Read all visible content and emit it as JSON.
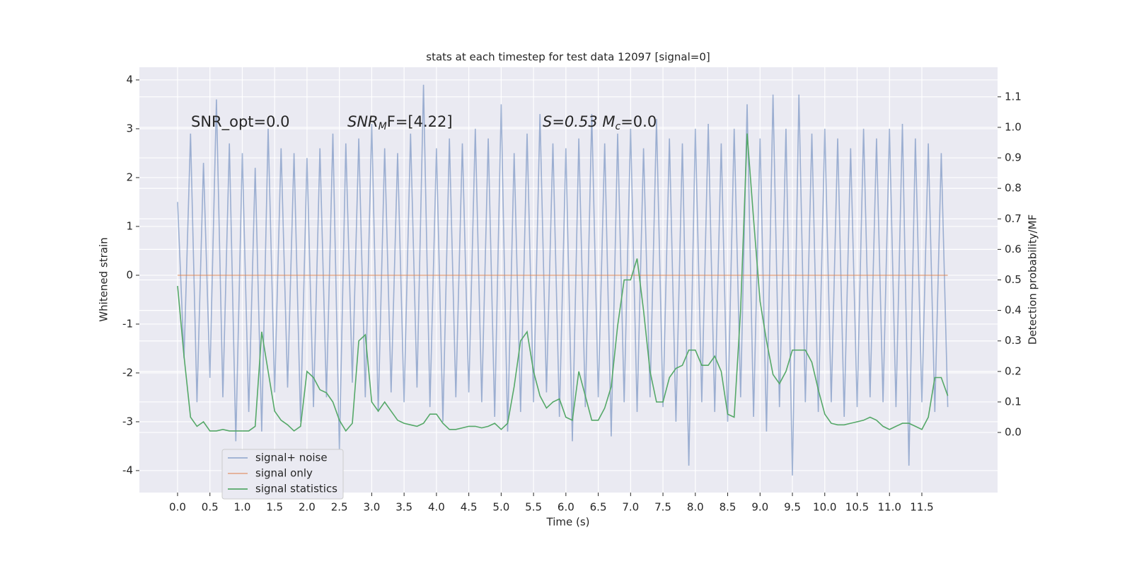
{
  "chart_data": {
    "type": "line",
    "title": "stats at each timestep for test data 12097 [signal=0]",
    "xlabel": "Time (s)",
    "ylabel": "Whitened strain",
    "y2label": "Detection probability/MF",
    "annotations": [
      {
        "text": "SNR_opt=0.0"
      },
      {
        "text": "SNR",
        "sub": "M",
        "after": "F=[4.22]"
      },
      {
        "text": "S=0.53   M",
        "sub": "c",
        "after": "=0.0"
      }
    ],
    "legend": "lower left",
    "grid": true,
    "xlim": [
      -0.59,
      12.67
    ],
    "ylim": [
      -4.45,
      4.26
    ],
    "y2lim": [
      -0.197,
      1.197
    ],
    "xticks": [
      {
        "value": 0,
        "label": "0.0"
      },
      0.5,
      {
        "value": 1,
        "label": "1.0"
      },
      1.5,
      {
        "value": 2,
        "label": "2.0"
      },
      2.5,
      {
        "value": 3,
        "label": "3.0"
      },
      3.5,
      {
        "value": 4,
        "label": "4.0"
      },
      4.5,
      {
        "value": 5,
        "label": "5.0"
      },
      5.5,
      {
        "value": 6,
        "label": "6.0"
      },
      6.5,
      {
        "value": 7,
        "label": "7.0"
      },
      7.5,
      {
        "value": 8,
        "label": "8.0"
      },
      8.5,
      {
        "value": 9,
        "label": "9.0"
      },
      9.5,
      {
        "value": 10,
        "label": "10.0"
      },
      10.5,
      {
        "value": 11,
        "label": "11.0"
      },
      11.5
    ],
    "yticks": [
      -4,
      -3,
      -2,
      -1,
      0,
      1,
      2,
      3,
      4
    ],
    "y2ticks": [
      {
        "value": 0,
        "label": "0.0"
      },
      0.1,
      0.2,
      0.3,
      0.4,
      0.5,
      0.6,
      0.7,
      0.8,
      0.9,
      {
        "value": 1,
        "label": "1.0"
      },
      1.1
    ],
    "x": [
      0,
      0.1,
      0.2,
      0.3,
      0.4,
      0.5,
      0.6,
      0.7,
      0.8,
      0.9,
      1,
      1.1,
      1.2,
      1.3,
      1.4,
      1.5,
      1.6,
      1.7,
      1.8,
      1.9,
      2,
      2.1,
      2.2,
      2.3,
      2.4,
      2.5,
      2.6,
      2.7,
      2.8,
      2.9,
      3,
      3.1,
      3.2,
      3.3,
      3.4,
      3.5,
      3.6,
      3.7,
      3.8,
      3.9,
      4,
      4.1,
      4.2,
      4.3,
      4.4,
      4.5,
      4.6,
      4.7,
      4.8,
      4.9,
      5,
      5.1,
      5.2,
      5.3,
      5.4,
      5.5,
      5.6,
      5.7,
      5.8,
      5.9,
      6,
      6.1,
      6.2,
      6.3,
      6.4,
      6.5,
      6.6,
      6.7,
      6.8,
      6.9,
      7,
      7.1,
      7.2,
      7.3,
      7.4,
      7.5,
      7.6,
      7.7,
      7.8,
      7.9,
      8,
      8.1,
      8.2,
      8.3,
      8.4,
      8.5,
      8.6,
      8.7,
      8.8,
      8.9,
      9,
      9.1,
      9.2,
      9.3,
      9.4,
      9.5,
      9.6,
      9.7,
      9.8,
      9.9,
      10,
      10.1,
      10.2,
      10.3,
      10.4,
      10.5,
      10.6,
      10.7,
      10.8,
      10.9,
      11,
      11.1,
      11.2,
      11.3,
      11.4,
      11.5,
      11.6,
      11.7,
      11.8,
      11.9
    ],
    "series": [
      {
        "name": "signal+ noise",
        "color": "#4c72b0",
        "opacity": 0.5,
        "values": [
          1.5,
          -1.7,
          2.9,
          -2.6,
          2.3,
          -2.1,
          3.6,
          -2.5,
          2.7,
          -3.4,
          2.5,
          -2.8,
          2.2,
          -3.2,
          3.0,
          -2.4,
          2.6,
          -2.3,
          2.5,
          -3.0,
          2.4,
          -2.7,
          2.6,
          -2.5,
          2.9,
          -3.6,
          2.7,
          -2.2,
          2.8,
          -2.5,
          3.1,
          -2.8,
          2.6,
          -2.4,
          2.5,
          -2.6,
          2.9,
          -2.3,
          3.9,
          -2.7,
          2.6,
          -3.0,
          2.8,
          -2.5,
          2.7,
          -2.4,
          3.0,
          -2.6,
          2.8,
          -2.9,
          3.5,
          -3.2,
          2.5,
          -2.8,
          2.9,
          -2.6,
          3.3,
          -2.4,
          2.7,
          -2.9,
          2.6,
          -3.4,
          2.8,
          -2.7,
          3.3,
          -2.5,
          2.7,
          -3.3,
          2.9,
          -2.6,
          3.0,
          -2.8,
          2.6,
          -2.5,
          3.2,
          -2.7,
          2.8,
          -3.0,
          2.7,
          -3.9,
          3.0,
          -2.6,
          3.1,
          -2.8,
          2.7,
          -3.0,
          3.0,
          -2.5,
          3.5,
          -2.9,
          2.8,
          -3.2,
          3.7,
          -2.7,
          3.0,
          -4.1,
          3.7,
          -2.6,
          2.9,
          -2.8,
          3.0,
          -2.6,
          2.8,
          -2.9,
          2.6,
          -2.7,
          3.0,
          -2.5,
          2.8,
          -2.6,
          3.0,
          -2.7,
          3.1,
          -3.9,
          2.8,
          -2.6,
          2.7,
          -2.8,
          2.5,
          -2.7
        ]
      },
      {
        "name": "signal only",
        "color": "#dd8452",
        "opacity": 0.6,
        "values": [
          0,
          0,
          0,
          0,
          0,
          0,
          0,
          0,
          0,
          0,
          0,
          0,
          0,
          0,
          0,
          0,
          0,
          0,
          0,
          0,
          0,
          0,
          0,
          0,
          0,
          0,
          0,
          0,
          0,
          0,
          0,
          0,
          0,
          0,
          0,
          0,
          0,
          0,
          0,
          0,
          0,
          0,
          0,
          0,
          0,
          0,
          0,
          0,
          0,
          0,
          0,
          0,
          0,
          0,
          0,
          0,
          0,
          0,
          0,
          0,
          0,
          0,
          0,
          0,
          0,
          0,
          0,
          0,
          0,
          0,
          0,
          0,
          0,
          0,
          0,
          0,
          0,
          0,
          0,
          0,
          0,
          0,
          0,
          0,
          0,
          0,
          0,
          0,
          0,
          0,
          0,
          0,
          0,
          0,
          0,
          0,
          0,
          0,
          0,
          0,
          0,
          0,
          0,
          0,
          0,
          0,
          0,
          0,
          0,
          0,
          0,
          0,
          0,
          0,
          0,
          0,
          0,
          0,
          0,
          0
        ]
      },
      {
        "name": "signal statistics",
        "color": "#55a868",
        "opacity": 1,
        "axis": "y2",
        "values": [
          0.48,
          0.25,
          0.05,
          0.02,
          0.035,
          0.005,
          0.005,
          0.01,
          0.005,
          0.005,
          0.005,
          0.005,
          0.02,
          0.33,
          0.2,
          0.07,
          0.04,
          0.025,
          0.005,
          0.02,
          0.2,
          0.18,
          0.14,
          0.13,
          0.1,
          0.04,
          0.005,
          0.03,
          0.3,
          0.32,
          0.1,
          0.07,
          0.1,
          0.07,
          0.04,
          0.03,
          0.025,
          0.02,
          0.03,
          0.06,
          0.06,
          0.03,
          0.01,
          0.01,
          0.015,
          0.02,
          0.02,
          0.015,
          0.02,
          0.03,
          0.01,
          0.03,
          0.15,
          0.3,
          0.33,
          0.2,
          0.12,
          0.08,
          0.1,
          0.11,
          0.05,
          0.04,
          0.2,
          0.12,
          0.04,
          0.04,
          0.08,
          0.15,
          0.35,
          0.5,
          0.5,
          0.57,
          0.4,
          0.2,
          0.1,
          0.1,
          0.18,
          0.21,
          0.22,
          0.27,
          0.27,
          0.22,
          0.22,
          0.25,
          0.2,
          0.06,
          0.05,
          0.4,
          0.98,
          0.7,
          0.43,
          0.3,
          0.19,
          0.16,
          0.2,
          0.27,
          0.27,
          0.27,
          0.23,
          0.14,
          0.06,
          0.03,
          0.025,
          0.025,
          0.03,
          0.035,
          0.04,
          0.05,
          0.04,
          0.02,
          0.01,
          0.02,
          0.03,
          0.03,
          0.02,
          0.01,
          0.05,
          0.18,
          0.18,
          0.12
        ]
      }
    ]
  }
}
